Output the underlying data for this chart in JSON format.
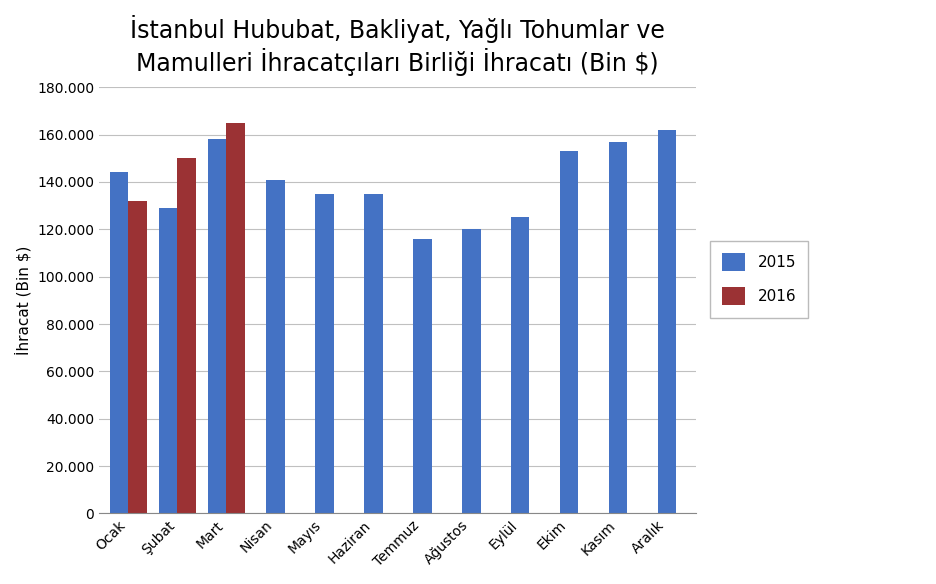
{
  "title": "İstanbul Hububat, Bakliyat, Yağlı Tohumlar ve\nMamulleri İhracatçıları Birliği İhracatı (Bin $)",
  "ylabel": "İhracat (Bin $)",
  "categories": [
    "Ocak",
    "Şubat",
    "Mart",
    "Nisan",
    "Mayıs",
    "Haziran",
    "Temmuz",
    "Ağustos",
    "Eylül",
    "Ekim",
    "Kasım",
    "Aralık"
  ],
  "values_2015": [
    144000,
    129000,
    158000,
    141000,
    135000,
    135000,
    116000,
    120000,
    125000,
    153000,
    157000,
    162000
  ],
  "values_2016": [
    132000,
    150000,
    165000,
    null,
    null,
    null,
    null,
    null,
    null,
    null,
    null,
    null
  ],
  "color_2015": "#4472C4",
  "color_2016": "#9B3234",
  "legend_2015": "2015",
  "legend_2016": "2016",
  "ylim": [
    0,
    180000
  ],
  "ytick_step": 20000,
  "bar_width": 0.38,
  "background_color": "#FFFFFF",
  "plot_bg_color": "#FFFFFF",
  "grid_color": "#C0C0C0",
  "title_fontsize": 17,
  "axis_fontsize": 11,
  "tick_fontsize": 10,
  "legend_fontsize": 11
}
